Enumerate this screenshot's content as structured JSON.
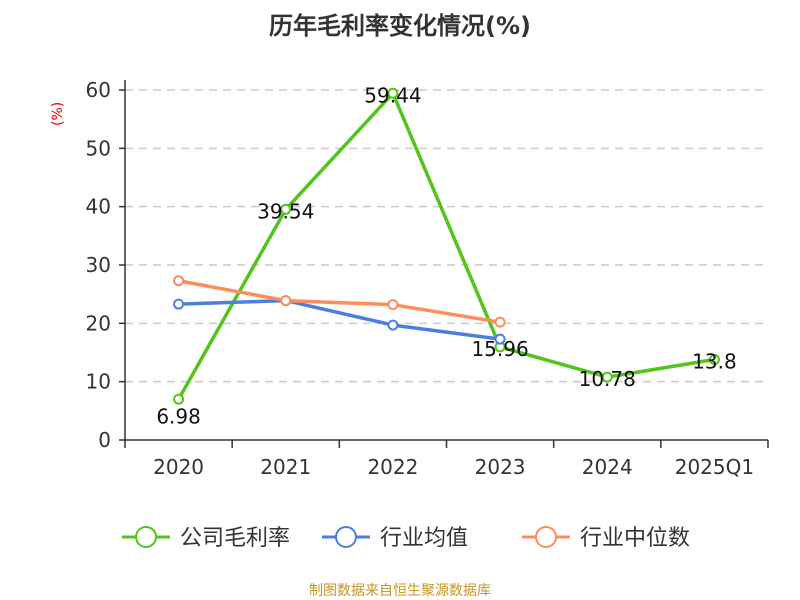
{
  "chart_data": {
    "type": "line",
    "title": "历年毛利率变化情况(%)",
    "ylabel": "(%)",
    "xlabel": "",
    "ylim": [
      0,
      60
    ],
    "yticks": [
      0,
      10,
      20,
      30,
      40,
      50,
      60
    ],
    "grid": true,
    "legend_position": "bottom",
    "categories": [
      "2020",
      "2021",
      "2022",
      "2023",
      "2024",
      "2025Q1"
    ],
    "series": [
      {
        "name": "公司毛利率",
        "color": "#52c41a",
        "values": [
          6.98,
          39.54,
          59.44,
          15.96,
          10.78,
          13.8
        ],
        "labels": [
          "6.98",
          "39.54",
          "59.44",
          "15.96",
          "10.78",
          "13.8"
        ]
      },
      {
        "name": "行业均值",
        "color": "#4a7fe0",
        "values": [
          23.3,
          23.9,
          19.7,
          17.3,
          null,
          null
        ]
      },
      {
        "name": "行业中位数",
        "color": "#ff8c5a",
        "values": [
          27.3,
          23.9,
          23.2,
          20.2,
          null,
          null
        ]
      }
    ]
  },
  "source": "制图数据来自恒生聚源数据库"
}
